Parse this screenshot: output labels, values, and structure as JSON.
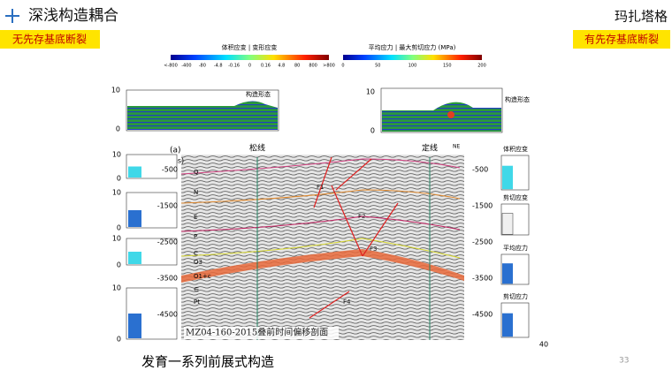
{
  "header": {
    "title": "深浅构造耦合",
    "location": "玛扎塔格"
  },
  "tags": {
    "left": "无先存基底断裂",
    "right": "有先存基底断裂"
  },
  "colorbar_strain": {
    "title": "体积应变 | 变形应变",
    "ticks": [
      "<-800",
      "-400",
      "-80",
      "-4.8",
      "-0.16",
      "0",
      "0.16",
      "4.8",
      "80",
      "800",
      ">800"
    ]
  },
  "colorbar_stress": {
    "title": "平均应力 | 最大剪切应力 (MPa)",
    "ticks": [
      "0",
      "50",
      "100",
      "150",
      "200"
    ]
  },
  "left_model": {
    "label": "构造形态",
    "ticks": [
      "10",
      "0"
    ]
  },
  "right_model": {
    "label": "构造形态",
    "ticks": [
      "10",
      "0"
    ]
  },
  "left_panels": [
    {
      "ticks": [
        "10",
        "0"
      ]
    },
    {
      "ticks": [
        "10",
        "0"
      ]
    },
    {
      "ticks": [
        "10",
        "0"
      ]
    },
    {
      "ticks": [
        "10",
        "0"
      ]
    }
  ],
  "right_panels": {
    "labels": [
      "体积应变",
      "剪切应变",
      "平均应力",
      "剪切应力"
    ],
    "x_end": "40"
  },
  "seismic": {
    "panel_label": "(a)",
    "axis_title": "T0(ms)",
    "line_1": "松线",
    "line_2": "定线",
    "direction": "NE",
    "left_ticks": [
      "-500",
      "-1500",
      "-2500",
      "-3500",
      "-4500"
    ],
    "right_ticks": [
      "-500",
      "-1500",
      "-2500",
      "-3500",
      "-4500"
    ],
    "horizons": [
      "Q",
      "N",
      "E",
      "P",
      "C",
      "O3",
      "O1+c",
      "∈",
      "Pt"
    ],
    "faults": [
      "F1",
      "F2",
      "F3",
      "F4"
    ],
    "caption": "MZ04-160-2015叠前时间偏移剖面"
  },
  "footer": {
    "text": "发育一系列前展式构造",
    "page": "33"
  }
}
